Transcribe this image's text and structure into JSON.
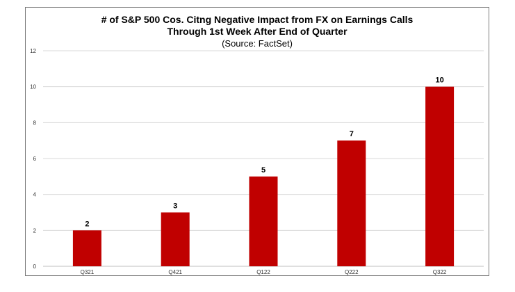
{
  "chart_data": {
    "type": "bar",
    "title": "# of S&P 500 Cos. Citng Negative Impact from FX on Earnings Calls",
    "subtitle": "Through 1st Week After End of Quarter",
    "source": "(Source: FactSet)",
    "categories": [
      "Q321",
      "Q421",
      "Q122",
      "Q222",
      "Q322"
    ],
    "values": [
      2,
      3,
      5,
      7,
      10
    ],
    "value_labels": [
      "2",
      "3",
      "5",
      "7",
      "10"
    ],
    "xlabel": "",
    "ylabel": "",
    "ylim": [
      0,
      12
    ],
    "yticks": [
      "0",
      "2",
      "4",
      "6",
      "8",
      "10",
      "12"
    ],
    "grid": true,
    "bar_color": "#c00000"
  }
}
